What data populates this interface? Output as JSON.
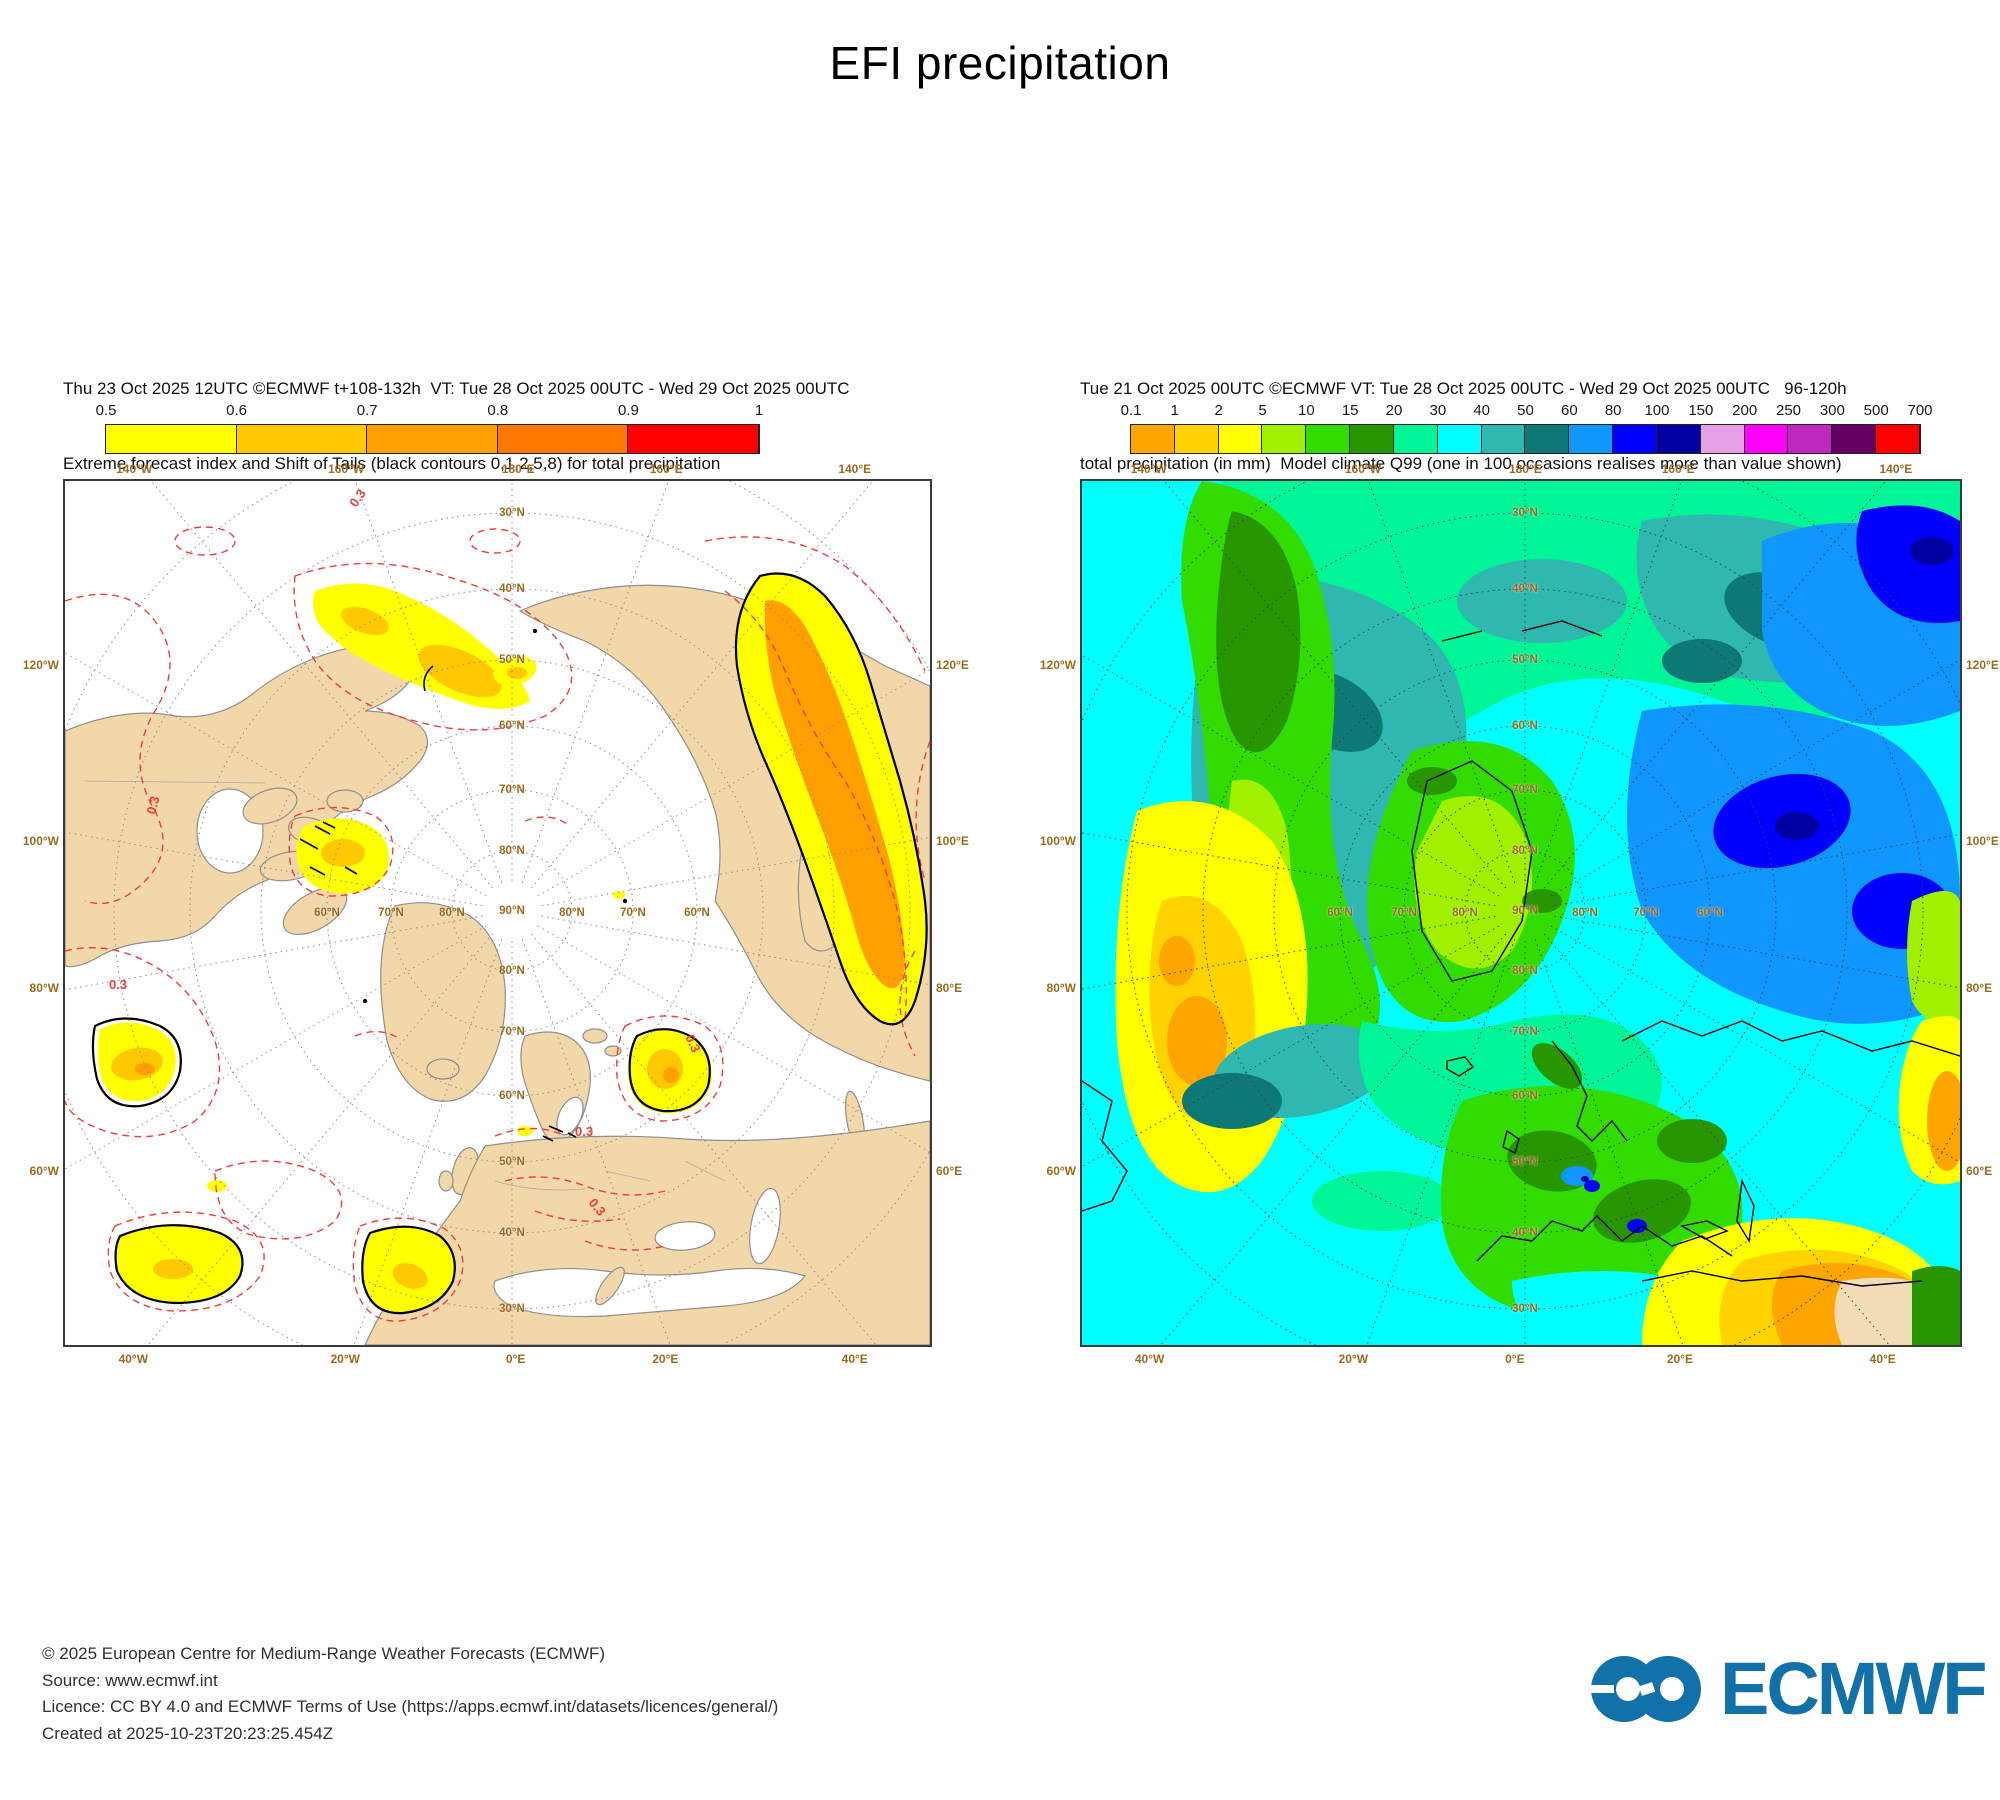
{
  "title": "EFI precipitation",
  "left_panel": {
    "header_line1": "Thu 23 Oct 2025 12UTC ©ECMWF t+108-132h  VT: Tue 28 Oct 2025 00UTC - Wed 29 Oct 2025 00UTC",
    "header_line2": "Extreme forecast index and Shift of Tails (black contours 0,1,2,5,8) for total precipitation",
    "colorbar": {
      "ticks": [
        "0.5",
        "0.6",
        "0.7",
        "0.8",
        "0.9",
        "1"
      ],
      "colors": [
        "#FFFF00",
        "#FFC800",
        "#FFA000",
        "#FF7800",
        "#FF0000"
      ]
    },
    "contour_label": "0.3"
  },
  "right_panel": {
    "header_line1": "Tue 21 Oct 2025 00UTC ©ECMWF VT: Tue 28 Oct 2025 00UTC - Wed 29 Oct 2025 00UTC   96-120h",
    "header_line2": "total precipitation (in mm)  Model climate Q99 (one in 100 occasions realises more than value shown)",
    "colorbar": {
      "ticks": [
        "0.1",
        "1",
        "2",
        "5",
        "10",
        "15",
        "20",
        "30",
        "40",
        "50",
        "60",
        "80",
        "100",
        "150",
        "200",
        "250",
        "300",
        "500",
        "700"
      ],
      "colors": [
        "#FFA500",
        "#FFD200",
        "#FFFF00",
        "#A0F000",
        "#32DC00",
        "#289600",
        "#00F596",
        "#00FFFF",
        "#2FB8B0",
        "#0E7876",
        "#0F96FF",
        "#0000FF",
        "#0000A0",
        "#E6A0E6",
        "#FF00FF",
        "#BE28BE",
        "#640064",
        "#FF0000"
      ]
    }
  },
  "maps": {
    "lon_top": [
      "140°W",
      "160°W",
      "180°E",
      "160°E",
      "140°E"
    ],
    "lon_bottom": [
      "40°W",
      "20°W",
      "0°E",
      "20°E",
      "40°E"
    ],
    "lat_left": [
      "120°W",
      "100°W",
      "80°W",
      "60°W"
    ],
    "lat_right": [
      "120°E",
      "100°E",
      "80°E",
      "60°E"
    ],
    "interior": [
      "30°N",
      "40°N",
      "50°N",
      "60°N",
      "70°N",
      "80°N",
      "90°N"
    ]
  },
  "footer": {
    "lines": [
      "© 2025 European Centre for Medium-Range Weather Forecasts (ECMWF)",
      "Source: www.ecmwf.int",
      "Licence: CC BY 4.0 and ECMWF Terms of Use (https://apps.ecmwf.int/datasets/licences/general/)",
      "Created at 2025-10-23T20:23:25.454Z"
    ]
  },
  "logo": {
    "text": "ECMWF"
  },
  "palette": {
    "land": "#F2D7A9",
    "coast": "#8F8F8F",
    "sea": "#FFFFFF",
    "efi_yellow": "#FFFF00",
    "efi_gold": "#FFC800",
    "efi_orange": "#FFA000",
    "contour_red": "#F23C3C",
    "contour_black": "#000000",
    "graticule_left": "#8C8C8C",
    "graticule_right": "#3C3C3C",
    "map_label": "#9A6B1F",
    "sand": "#F2DCB4",
    "logo_blue": "#1371A9"
  }
}
